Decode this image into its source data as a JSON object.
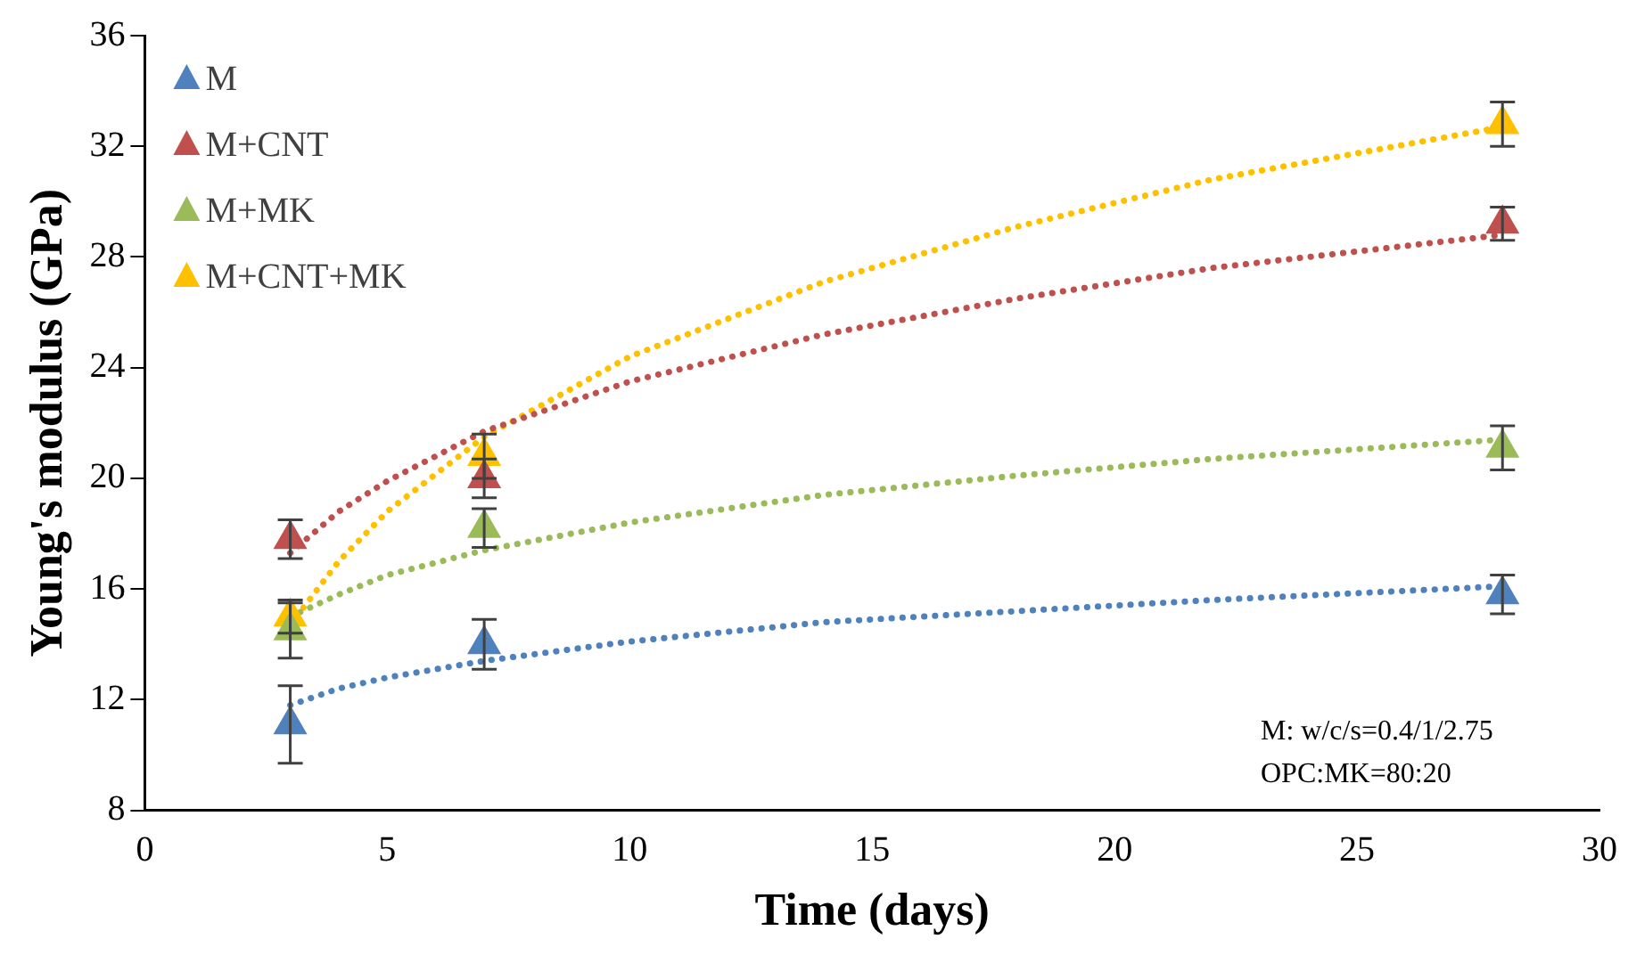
{
  "chart_data": {
    "type": "scatter",
    "xlabel": "Time (days)",
    "ylabel": "Young's modulus (GPa)",
    "xlim": [
      0,
      30
    ],
    "xticks": [
      0,
      5,
      10,
      15,
      20,
      25,
      30
    ],
    "ylim": [
      8,
      36
    ],
    "yticks": [
      8,
      12,
      16,
      20,
      24,
      28,
      32,
      36
    ],
    "grid": false,
    "legend": "top left",
    "marker": "triangle",
    "annotations": [
      "M: w/c/s=0.4/1/2.75",
      "OPC:MK=80:20"
    ],
    "series": [
      {
        "name": "M",
        "color": "#4f81bd",
        "x": [
          3,
          7,
          28
        ],
        "values": [
          11.1,
          14.0,
          15.8
        ],
        "errors": [
          1.4,
          0.9,
          0.7
        ]
      },
      {
        "name": "M+CNT",
        "color": "#c0504d",
        "x": [
          3,
          7,
          28
        ],
        "values": [
          17.8,
          20.0,
          29.2
        ],
        "errors": [
          0.7,
          0.7,
          0.6
        ]
      },
      {
        "name": "M+MK",
        "color": "#9bbb59",
        "x": [
          3,
          7,
          28
        ],
        "values": [
          14.5,
          18.2,
          21.1
        ],
        "errors": [
          1.0,
          0.7,
          0.8
        ]
      },
      {
        "name": "M+CNT+MK",
        "color": "#ffc000",
        "x": [
          3,
          7,
          28
        ],
        "values": [
          15.0,
          20.8,
          32.8
        ],
        "errors": [
          0.6,
          0.8,
          0.8
        ]
      },
      {
        "type": "line",
        "color": "#4f81bd",
        "line_style": "dotted",
        "marker": "none",
        "x": [
          3,
          4,
          5,
          7,
          10,
          14,
          18,
          22,
          28
        ],
        "values": [
          11.8,
          12.4,
          12.8,
          13.4,
          14.1,
          14.8,
          15.2,
          15.6,
          16.1
        ]
      },
      {
        "type": "line",
        "color": "#c0504d",
        "line_style": "dotted",
        "marker": "none",
        "x": [
          3,
          4,
          5,
          7,
          10,
          14,
          18,
          22,
          28
        ],
        "values": [
          17.3,
          18.8,
          19.9,
          21.7,
          23.5,
          25.2,
          26.5,
          27.6,
          28.8
        ]
      },
      {
        "type": "line",
        "color": "#9bbb59",
        "line_style": "dotted",
        "marker": "none",
        "x": [
          3,
          4,
          5,
          7,
          10,
          14,
          18,
          22,
          28
        ],
        "values": [
          15.0,
          15.8,
          16.5,
          17.4,
          18.4,
          19.4,
          20.1,
          20.7,
          21.4
        ]
      },
      {
        "type": "line",
        "color": "#ffc000",
        "line_style": "dotted",
        "marker": "none",
        "x": [
          3,
          4,
          5,
          7,
          10,
          14,
          18,
          22,
          28
        ],
        "values": [
          14.7,
          17.0,
          18.8,
          21.5,
          24.4,
          27.1,
          29.1,
          30.8,
          32.7
        ]
      }
    ]
  }
}
